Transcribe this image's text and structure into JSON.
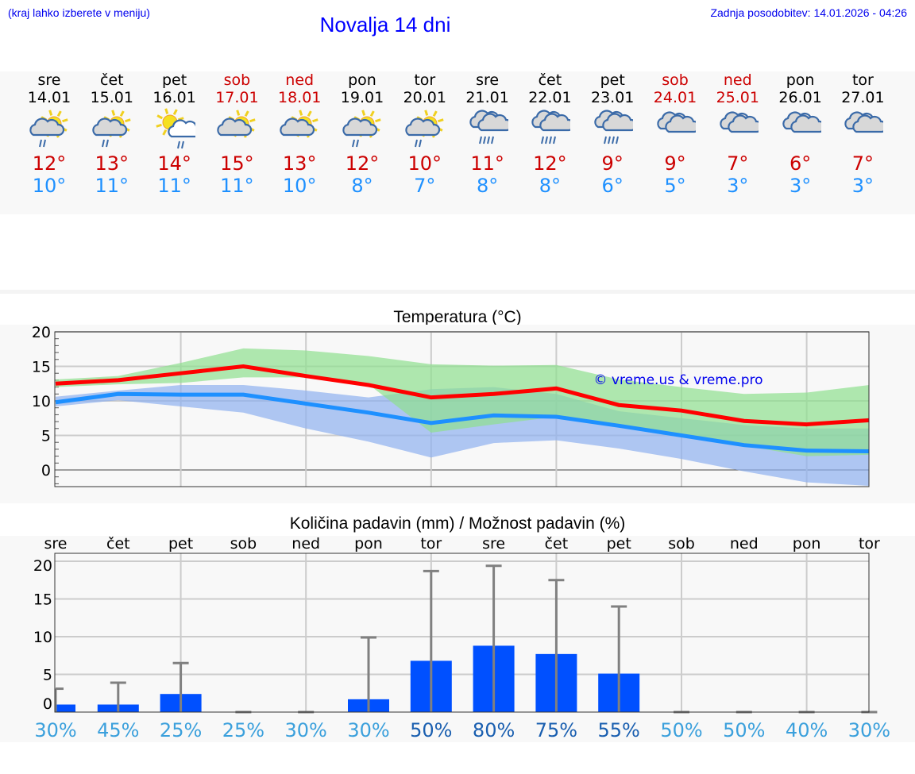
{
  "header": {
    "hint": "(kraj lahko izberete v meniju)",
    "title": "Novalja 14 dni",
    "updated": "Zadnja posodobitev: 14.01.2026 - 04:26"
  },
  "days": [
    {
      "name": "sre",
      "date": "14.01",
      "weekend": false,
      "icon": "sun-cloud-rain",
      "max": "12°",
      "min": "10°"
    },
    {
      "name": "čet",
      "date": "15.01",
      "weekend": false,
      "icon": "sun-cloud-rain",
      "max": "13°",
      "min": "11°"
    },
    {
      "name": "pet",
      "date": "16.01",
      "weekend": false,
      "icon": "sun-whitecloud-rain",
      "max": "14°",
      "min": "11°"
    },
    {
      "name": "sob",
      "date": "17.01",
      "weekend": true,
      "icon": "sun-cloud",
      "max": "15°",
      "min": "11°"
    },
    {
      "name": "ned",
      "date": "18.01",
      "weekend": true,
      "icon": "sun-cloud",
      "max": "13°",
      "min": "10°"
    },
    {
      "name": "pon",
      "date": "19.01",
      "weekend": false,
      "icon": "sun-cloud-rain",
      "max": "12°",
      "min": "8°"
    },
    {
      "name": "tor",
      "date": "20.01",
      "weekend": false,
      "icon": "sun-cloud-rain",
      "max": "10°",
      "min": "7°"
    },
    {
      "name": "sre",
      "date": "21.01",
      "weekend": false,
      "icon": "cloud-rain",
      "max": "11°",
      "min": "8°"
    },
    {
      "name": "čet",
      "date": "22.01",
      "weekend": false,
      "icon": "cloud-rain",
      "max": "12°",
      "min": "8°"
    },
    {
      "name": "pet",
      "date": "23.01",
      "weekend": false,
      "icon": "cloud-rain",
      "max": "9°",
      "min": "6°"
    },
    {
      "name": "sob",
      "date": "24.01",
      "weekend": true,
      "icon": "cloud",
      "max": "9°",
      "min": "5°"
    },
    {
      "name": "ned",
      "date": "25.01",
      "weekend": true,
      "icon": "cloud",
      "max": "7°",
      "min": "3°"
    },
    {
      "name": "pon",
      "date": "26.01",
      "weekend": false,
      "icon": "cloud",
      "max": "6°",
      "min": "3°"
    },
    {
      "name": "tor",
      "date": "27.01",
      "weekend": false,
      "icon": "cloud",
      "max": "7°",
      "min": "3°"
    }
  ],
  "colors": {
    "max": "#ff0000",
    "min": "#1e90ff",
    "maxband": "#8fdf8f",
    "minband": "#8fb0f0",
    "bar": "#0050ff",
    "err": "#808080",
    "pct_low": "#3ba0dc",
    "pct_high": "#1a5fb0"
  },
  "chart_data": [
    {
      "type": "line",
      "title": "Temperatura (°C)",
      "ylim": [
        -2.4,
        20
      ],
      "yticks": [
        0,
        5,
        10,
        15,
        20
      ],
      "watermark": "© vreme.us & vreme.pro",
      "series": [
        {
          "name": "max",
          "values": [
            12.5,
            13,
            14,
            15,
            13.6,
            12.3,
            10.5,
            11,
            11.8,
            9.4,
            8.6,
            7.1,
            6.6,
            7.2
          ]
        },
        {
          "name": "min",
          "values": [
            9.8,
            11,
            10.9,
            10.9,
            9.6,
            8.3,
            6.8,
            7.9,
            7.7,
            6.4,
            5,
            3.6,
            2.8,
            2.7
          ]
        },
        {
          "name": "max_range_high",
          "values": [
            13.1,
            13.6,
            15.5,
            17.6,
            17.3,
            16.5,
            15.3,
            15.1,
            15.2,
            13.1,
            12,
            11,
            11.2,
            12.3
          ]
        },
        {
          "name": "max_range_low",
          "values": [
            12,
            12.4,
            12.6,
            13.4,
            13.4,
            12.4,
            5.4,
            6.6,
            7.7,
            6.5,
            5,
            3.5,
            2,
            2.2
          ]
        },
        {
          "name": "min_range_high",
          "values": [
            10.6,
            11.5,
            12.3,
            12.3,
            11.5,
            10.5,
            11.7,
            12,
            11,
            8.5,
            7.5,
            6.5,
            6,
            6
          ]
        },
        {
          "name": "min_range_low",
          "values": [
            9.2,
            10.1,
            9.2,
            8.3,
            6,
            4.1,
            1.8,
            3.9,
            4.3,
            3.1,
            1.6,
            -0.2,
            -1.8,
            -2.3
          ]
        }
      ]
    },
    {
      "type": "bar",
      "title": "Količina padavin (mm) / Možnost padavin (%)",
      "ylim": [
        0,
        21
      ],
      "yticks": [
        0,
        5,
        10,
        15,
        20
      ],
      "categories": [
        "sre",
        "čet",
        "pet",
        "sob",
        "ned",
        "pon",
        "tor",
        "sre",
        "čet",
        "pet",
        "sob",
        "ned",
        "pon",
        "tor"
      ],
      "values": [
        1,
        1,
        2.4,
        0,
        0,
        1.7,
        6.8,
        8.8,
        7.7,
        5.1,
        0,
        0,
        0,
        0
      ],
      "error_high": [
        3.1,
        3.9,
        6.5,
        0,
        0,
        9.9,
        18.7,
        19.4,
        17.5,
        14,
        0,
        0,
        0,
        0
      ],
      "probability": [
        "30%",
        "45%",
        "25%",
        "25%",
        "30%",
        "30%",
        "50%",
        "80%",
        "75%",
        "55%",
        "50%",
        "50%",
        "40%",
        "30%"
      ]
    }
  ]
}
